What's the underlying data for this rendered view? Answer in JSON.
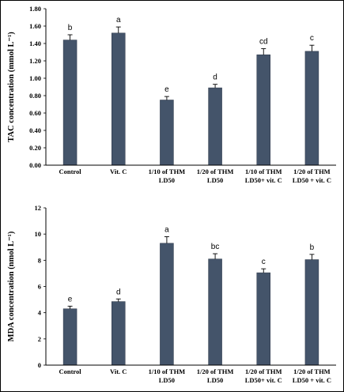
{
  "chart_data": [
    {
      "type": "bar",
      "ylabel": "TAC concentration (mmol L⁻¹)",
      "ylim": [
        0,
        1.8
      ],
      "yticks": [
        "0.00",
        "0.20",
        "0.40",
        "0.60",
        "0.80",
        "1.00",
        "1.20",
        "1.40",
        "1.60",
        "1.80"
      ],
      "categories": [
        [
          "Control"
        ],
        [
          "Vit. C"
        ],
        [
          "1/10 of THM",
          "LD50"
        ],
        [
          "1/20 of THM",
          "LD50"
        ],
        [
          "1/10 of THM",
          "LD50+ vit. C"
        ],
        [
          "1/20 of THM",
          "LD50 + vit. C"
        ]
      ],
      "values": [
        1.44,
        1.52,
        0.75,
        0.89,
        1.27,
        1.31
      ],
      "errors": [
        0.06,
        0.07,
        0.04,
        0.04,
        0.07,
        0.07
      ],
      "labels": [
        "b",
        "a",
        "e",
        "d",
        "cd",
        "c"
      ],
      "bar_color": "#44546a"
    },
    {
      "type": "bar",
      "ylabel": "MDA concentration (nmol L⁻¹)",
      "ylim": [
        0,
        12
      ],
      "yticks": [
        "0",
        "2",
        "4",
        "6",
        "8",
        "10",
        "12"
      ],
      "categories": [
        [
          "Control"
        ],
        [
          "Vit. C"
        ],
        [
          "1/10 of THM",
          "LD50"
        ],
        [
          "1/20 of THM",
          "LD50"
        ],
        [
          "1/20 of THM",
          "LD50+ vit. C"
        ],
        [
          "1/20 of THM",
          "LD50 + vit. C"
        ]
      ],
      "values": [
        4.3,
        4.85,
        9.3,
        8.1,
        7.05,
        8.05
      ],
      "errors": [
        0.2,
        0.2,
        0.5,
        0.4,
        0.3,
        0.4
      ],
      "labels": [
        "e",
        "d",
        "a",
        "bc",
        "c",
        "b"
      ],
      "bar_color": "#44546a"
    }
  ]
}
